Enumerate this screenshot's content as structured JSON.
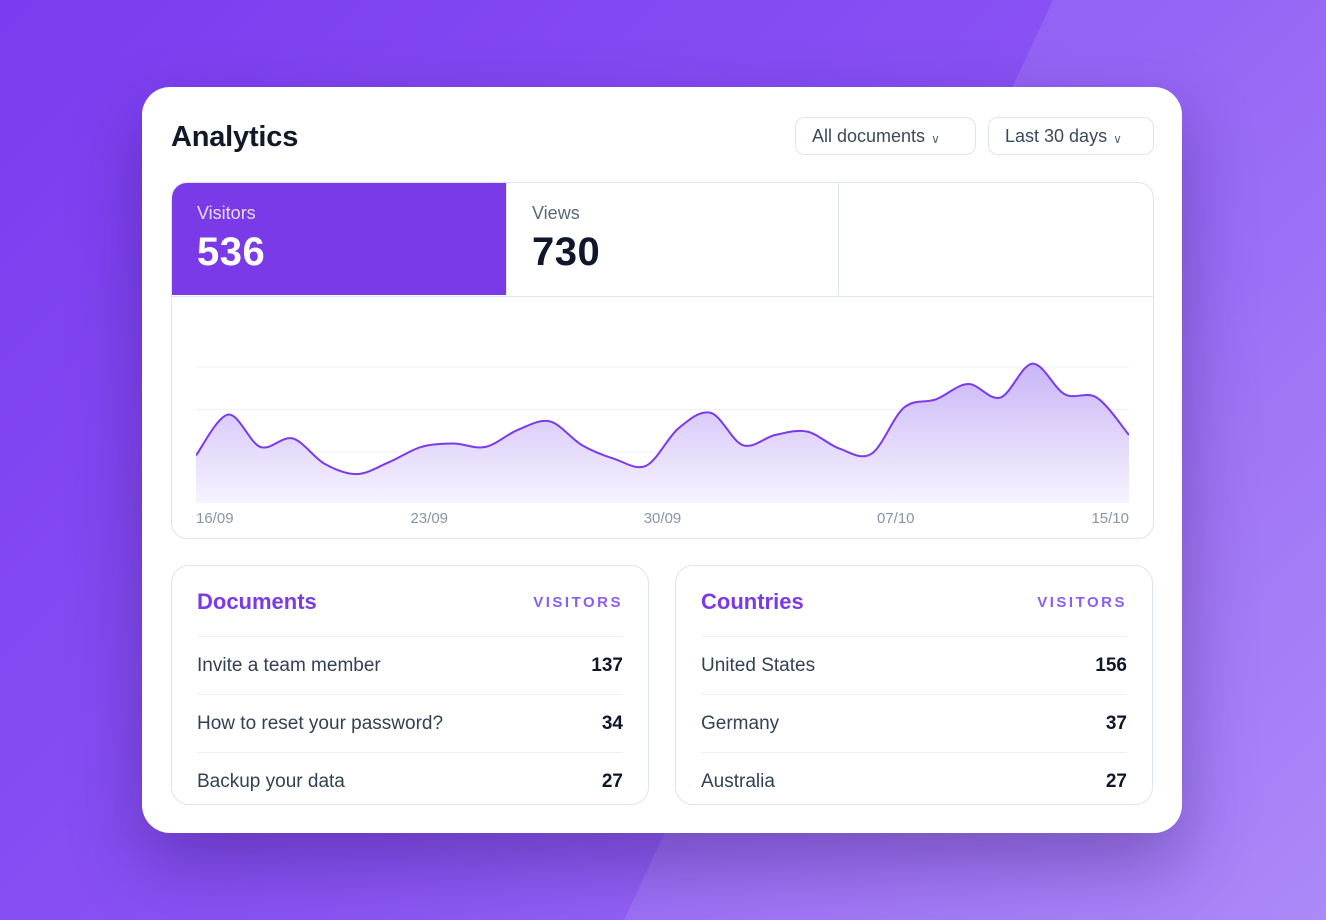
{
  "header": {
    "title": "Analytics",
    "filters": [
      {
        "label": "All documents"
      },
      {
        "label": "Last 30 days"
      }
    ]
  },
  "stats": {
    "tabs": [
      {
        "label": "Visitors",
        "value": "536",
        "active": true
      },
      {
        "label": "Views",
        "value": "730",
        "active": false
      }
    ]
  },
  "chart_data": {
    "type": "area",
    "x_tick_labels": [
      "16/09",
      "23/09",
      "30/09",
      "07/10",
      "15/10"
    ],
    "values": [
      28,
      52,
      33,
      38,
      23,
      17,
      24,
      33,
      35,
      33,
      43,
      48,
      34,
      26,
      22,
      44,
      53,
      34,
      40,
      42,
      32,
      29,
      56,
      61,
      70,
      62,
      82,
      64,
      62,
      40
    ],
    "grid": true,
    "color": "#7c3aed",
    "fill_top": "#c9b5f7",
    "fill_bottom": "#f7f3ff"
  },
  "documents": {
    "title": "Documents",
    "column": "VISITORS",
    "rows": [
      {
        "name": "Invite a team member",
        "value": "137"
      },
      {
        "name": "How to reset your password?",
        "value": "34"
      },
      {
        "name": "Backup your data",
        "value": "27"
      }
    ]
  },
  "countries": {
    "title": "Countries",
    "column": "VISITORS",
    "rows": [
      {
        "name": "United States",
        "value": "156"
      },
      {
        "name": "Germany",
        "value": "37"
      },
      {
        "name": "Australia",
        "value": "27"
      }
    ]
  }
}
